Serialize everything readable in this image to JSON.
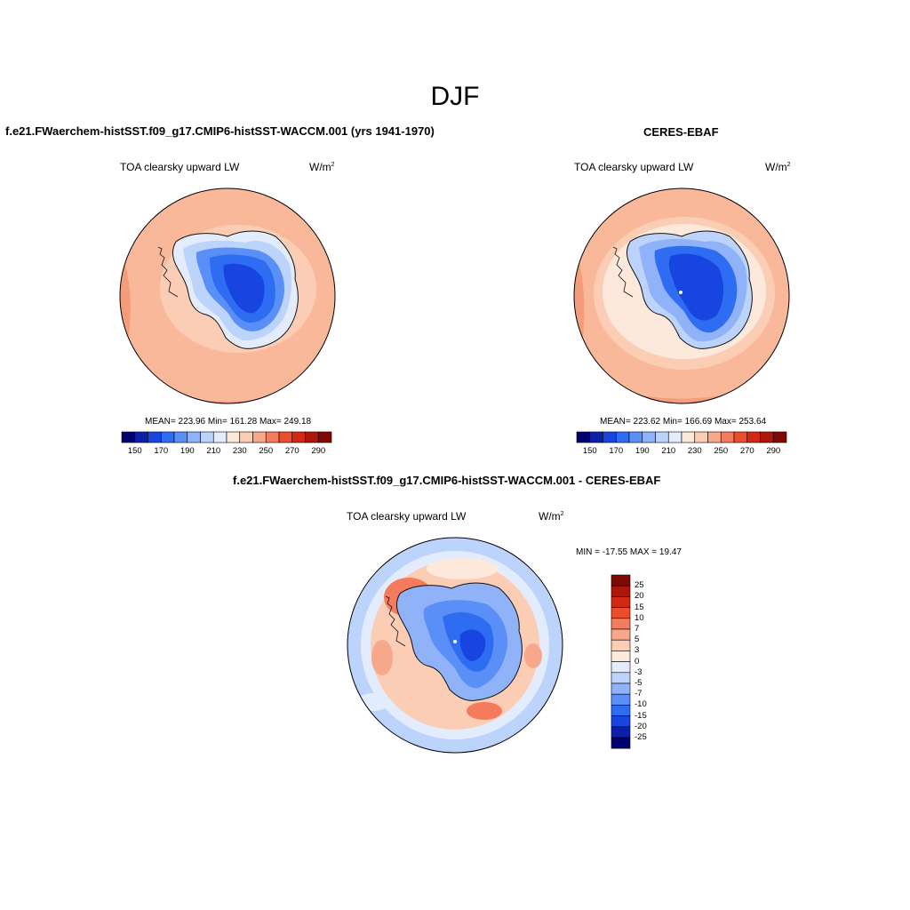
{
  "title": "DJF",
  "panels": [
    {
      "title": "f.e21.FWaerchem-histSST.f09_g17.CMIP6-histSST-WACCM.001 (yrs 1941-1970)",
      "variable": "TOA clearsky upward LW",
      "units_base": "W/m",
      "units_exp": "2",
      "stats": "MEAN= 223.96  Min= 161.28  Max= 249.18",
      "map_palette": "model"
    },
    {
      "title": "CERES-EBAF",
      "variable": "TOA clearsky upward LW",
      "units_base": "W/m",
      "units_exp": "2",
      "stats": "MEAN= 223.62  Min= 166.69  Max= 253.64",
      "map_palette": "obs"
    },
    {
      "title": "f.e21.FWaerchem-histSST.f09_g17.CMIP6-histSST-WACCM.001 - CERES-EBAF",
      "variable": "TOA clearsky upward LW",
      "units_base": "W/m",
      "units_exp": "2",
      "stats": "MIN = -17.55 MAX =  19.47",
      "map_palette": "diff"
    }
  ],
  "colorbar_main": {
    "colors": [
      "#00006e",
      "#0b1fa8",
      "#1845e0",
      "#2e6cf2",
      "#5a8ff7",
      "#8fb2f8",
      "#bcd3fb",
      "#e3ecfd",
      "#fde9dc",
      "#fbcdb4",
      "#f8a88a",
      "#f47c5c",
      "#ec4d2c",
      "#d32914",
      "#ad1609",
      "#7d0a04"
    ],
    "tick_labels": [
      "150",
      "170",
      "190",
      "210",
      "230",
      "250",
      "270",
      "290"
    ]
  },
  "colorbar_diff": {
    "colors_top_to_bottom": [
      "#7d0a04",
      "#ad1609",
      "#d32914",
      "#ec4d2c",
      "#f47c5c",
      "#f8a88a",
      "#fbcdb4",
      "#fde9dc",
      "#e3ecfd",
      "#bcd3fb",
      "#8fb2f8",
      "#5a8ff7",
      "#2e6cf2",
      "#1845e0",
      "#0b1fa8",
      "#00006e"
    ],
    "tick_labels_top_to_bottom": [
      "25",
      "20",
      "15",
      "10",
      "7",
      "5",
      "3",
      "0",
      "-3",
      "-5",
      "-7",
      "-10",
      "-15",
      "-20",
      "-25"
    ]
  }
}
